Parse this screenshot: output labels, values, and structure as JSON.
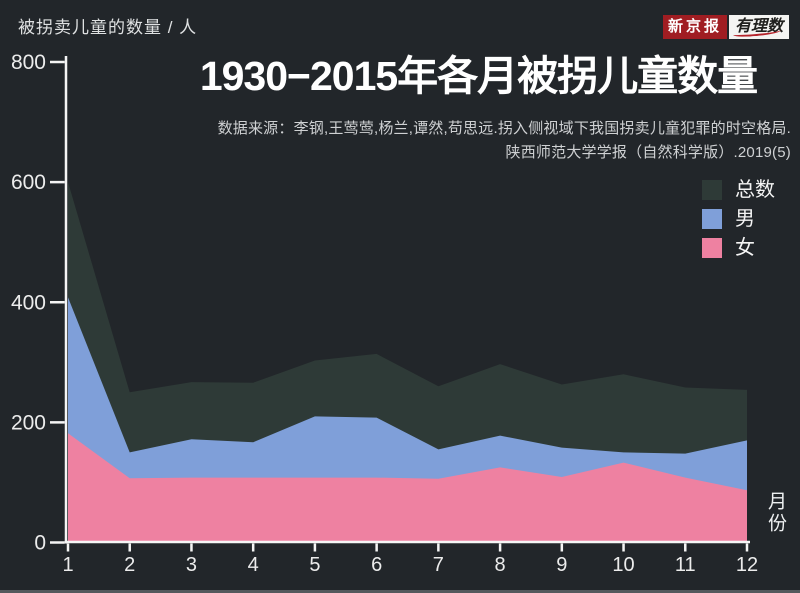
{
  "header": {
    "logo_left": "新京报",
    "logo_right": "有理数"
  },
  "title": "1930−2015年各月被拐儿童数量",
  "source": {
    "line1": "数据来源：李钢,王莺莺,杨兰,谭然,苟思远.拐入侧视域下我国拐卖儿童犯罪的时空格局.",
    "line2": "陕西师范大学学报（自然科学版）.2019(5)"
  },
  "chart_data": {
    "type": "area",
    "mode": "overlaid",
    "title": "1930−2015年各月被拐儿童数量",
    "xlabel": "月份",
    "ylabel": "被拐卖儿童的数量 / 人",
    "x": [
      1,
      2,
      3,
      4,
      5,
      6,
      7,
      8,
      9,
      10,
      11,
      12
    ],
    "ylim": [
      0,
      800
    ],
    "yticks": [
      0,
      200,
      400,
      600,
      800
    ],
    "grid": false,
    "legend_position": "top-right",
    "series": [
      {
        "key": "total",
        "name": "总数",
        "color": "#2e3a37",
        "values": [
          600,
          250,
          267,
          266,
          303,
          314,
          260,
          297,
          263,
          280,
          258,
          254
        ]
      },
      {
        "key": "male",
        "name": "男",
        "color": "#7f9fd9",
        "values": [
          408,
          150,
          172,
          167,
          210,
          208,
          155,
          178,
          158,
          150,
          148,
          170
        ]
      },
      {
        "key": "female",
        "name": "女",
        "color": "#ee81a1",
        "values": [
          182,
          107,
          108,
          108,
          108,
          108,
          106,
          125,
          109,
          133,
          108,
          87
        ]
      }
    ],
    "colors": {
      "axis": "#f5f5f5",
      "tick_text": "#ececec",
      "background": "#22262a"
    }
  }
}
